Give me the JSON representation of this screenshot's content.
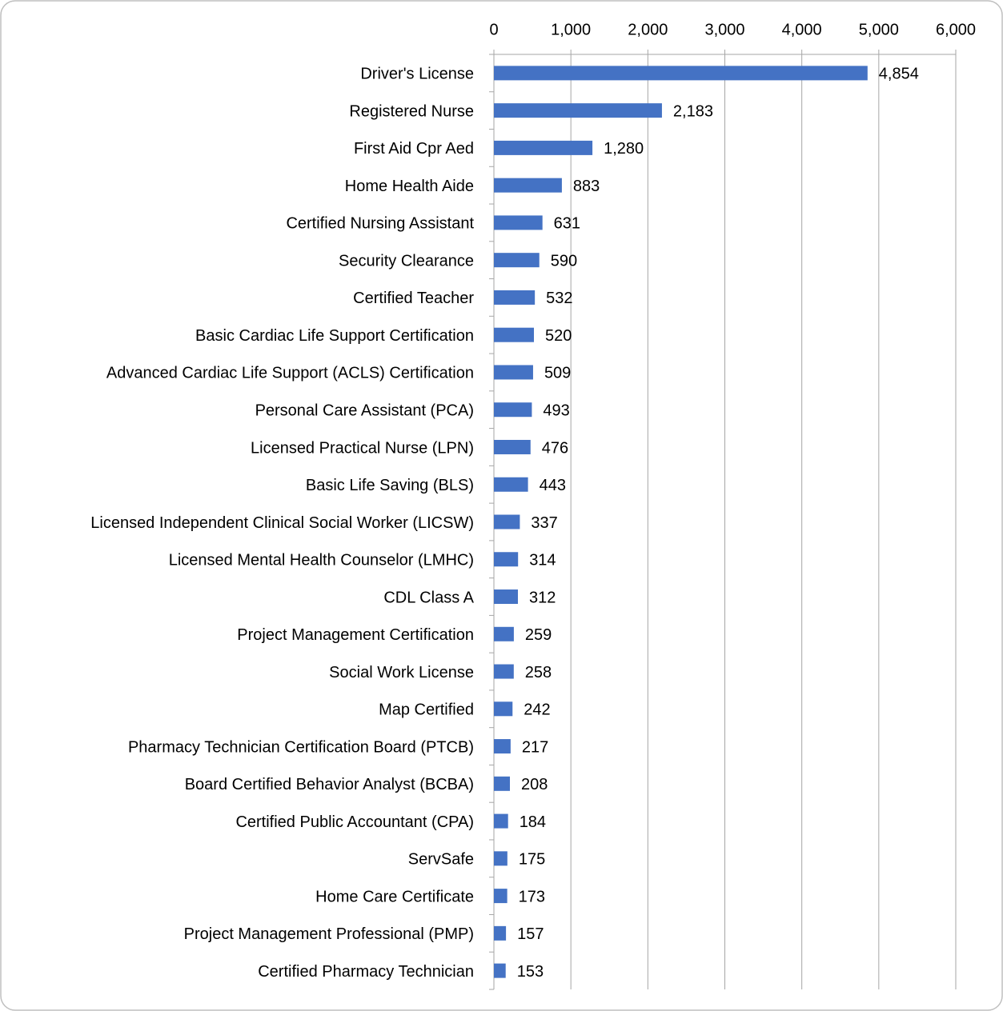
{
  "chart_data": {
    "type": "bar",
    "orientation": "horizontal",
    "categories": [
      "Driver's License",
      "Registered Nurse",
      "First Aid Cpr Aed",
      "Home Health Aide",
      "Certified Nursing Assistant",
      "Security Clearance",
      "Certified Teacher",
      "Basic Cardiac Life Support Certification",
      "Advanced Cardiac Life Support (ACLS) Certification",
      "Personal Care Assistant (PCA)",
      "Licensed Practical Nurse (LPN)",
      "Basic Life Saving (BLS)",
      "Licensed Independent Clinical Social Worker (LICSW)",
      "Licensed Mental Health Counselor (LMHC)",
      "CDL Class A",
      "Project Management Certification",
      "Social Work License",
      "Map Certified",
      "Pharmacy Technician Certification Board (PTCB)",
      "Board Certified Behavior Analyst (BCBA)",
      "Certified Public Accountant (CPA)",
      "ServSafe",
      "Home Care Certificate",
      "Project Management Professional (PMP)",
      "Certified Pharmacy Technician"
    ],
    "values": [
      4854,
      2183,
      1280,
      883,
      631,
      590,
      532,
      520,
      509,
      493,
      476,
      443,
      337,
      314,
      312,
      259,
      258,
      242,
      217,
      208,
      184,
      175,
      173,
      157,
      153
    ],
    "value_labels": [
      "4,854",
      "2,183",
      "1,280",
      "883",
      "631",
      "590",
      "532",
      "520",
      "509",
      "493",
      "476",
      "443",
      "337",
      "314",
      "312",
      "259",
      "258",
      "242",
      "217",
      "208",
      "184",
      "175",
      "173",
      "157",
      "153"
    ],
    "color": "#4472c4",
    "xlim": [
      0,
      6000
    ],
    "xticks": [
      0,
      {
        "value": 1000,
        "label": "1,000"
      },
      {
        "value": 2000,
        "label": "2,000"
      },
      {
        "value": 3000,
        "label": "3,000"
      },
      {
        "value": 4000,
        "label": "4,000"
      },
      {
        "value": 5000,
        "label": "5,000"
      },
      {
        "value": 6000,
        "label": "6,000"
      }
    ],
    "grid": true
  }
}
